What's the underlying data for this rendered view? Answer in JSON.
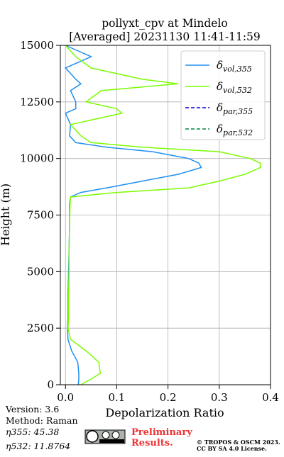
{
  "chart_data": {
    "type": "line",
    "title": [
      "pollyxt_cpv at Mindelo",
      "[Averaged] 20231130 11:41-11:59"
    ],
    "xlabel": "Depolarization Ratio",
    "ylabel": "Height (m)",
    "y": [
      0,
      250,
      500,
      1000,
      1500,
      2000,
      2500,
      3000,
      4000,
      5000,
      6000,
      7000,
      8000,
      8300,
      8500,
      8700,
      9000,
      9300,
      9600,
      9800,
      10000,
      10300,
      10500,
      10700,
      11000,
      11500,
      12000,
      12200,
      12500,
      13000,
      13300,
      13500,
      14000,
      14500,
      15000
    ],
    "series": [
      {
        "name": "δvol,355",
        "color": "#1f8ff0",
        "dash": false,
        "values": [
          0.025,
          0.026,
          0.026,
          0.024,
          0.012,
          0.005,
          0.004,
          0.005,
          0.005,
          0.006,
          0.007,
          0.008,
          0.008,
          0.01,
          0.03,
          0.08,
          0.15,
          0.22,
          0.265,
          0.26,
          0.24,
          0.17,
          0.08,
          0.02,
          0.008,
          0.01,
          0.0,
          0.02,
          0.02,
          0.01,
          0.03,
          0.02,
          0.0,
          0.05,
          0.0
        ]
      },
      {
        "name": "δvol,532",
        "color": "#7cfc00",
        "dash": false,
        "values": [
          0.03,
          0.05,
          0.068,
          0.065,
          0.04,
          0.01,
          0.005,
          0.006,
          0.006,
          0.007,
          0.007,
          0.008,
          0.009,
          0.01,
          0.1,
          0.24,
          0.3,
          0.35,
          0.38,
          0.38,
          0.36,
          0.3,
          0.15,
          0.05,
          0.03,
          0.01,
          0.11,
          0.1,
          0.04,
          0.07,
          0.22,
          0.15,
          0.05,
          0.02,
          0.0
        ]
      },
      {
        "name": "δpar,355",
        "color": "#0000cc",
        "dash": true,
        "values": [
          null,
          null,
          null,
          null,
          null,
          null,
          null,
          null,
          null,
          null,
          null,
          null,
          null,
          null,
          null,
          null,
          null,
          null,
          null,
          null,
          null,
          null,
          null,
          null,
          null,
          null,
          null,
          null,
          null,
          null,
          null,
          null,
          null,
          null,
          null
        ]
      },
      {
        "name": "δpar,532",
        "color": "#008844",
        "dash": true,
        "values": [
          null,
          null,
          null,
          null,
          null,
          null,
          null,
          null,
          null,
          null,
          null,
          null,
          null,
          null,
          null,
          null,
          null,
          null,
          null,
          null,
          null,
          null,
          null,
          null,
          null,
          null,
          null,
          null,
          null,
          null,
          null,
          null,
          null,
          null,
          null
        ]
      }
    ],
    "xlim": [
      -0.01,
      0.4
    ],
    "xticks": [
      {
        "value": 0,
        "label": "0.0"
      },
      0.1,
      0.2,
      0.3,
      0.4
    ],
    "ylim": [
      0,
      15000
    ],
    "yticks": [
      0,
      2500,
      5000,
      7500,
      10000,
      12500,
      15000
    ],
    "grid": true,
    "legend": "upper right"
  },
  "footer": {
    "info": [
      "Version: 3.6",
      "Method: Raman",
      "η355:  45.38",
      "η532: 11.8764"
    ],
    "notice": [
      "Preliminary",
      "Results."
    ],
    "copyright": [
      "© TROPOS & OSCM 2023.",
      "CC BY SA 4.0 License."
    ]
  }
}
